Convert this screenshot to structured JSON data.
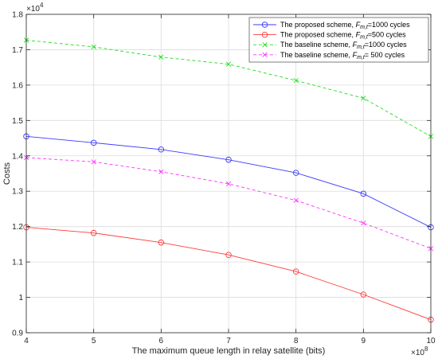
{
  "chart_data": {
    "type": "line",
    "title": "",
    "xlabel": "The maximum queue length in relay satellite (bits)",
    "ylabel": "Costs",
    "x_multiplier": "×10^8",
    "y_multiplier": "×10^4",
    "xlim": [
      4,
      10
    ],
    "ylim": [
      0.9,
      1.8
    ],
    "x_ticks": [
      4,
      5,
      6,
      7,
      8,
      9,
      10
    ],
    "y_ticks": [
      0.9,
      1.0,
      1.1,
      1.2,
      1.3,
      1.4,
      1.5,
      1.6,
      1.7,
      1.8
    ],
    "x_tick_labels": [
      "4",
      "5",
      "6",
      "7",
      "8",
      "9",
      "10"
    ],
    "y_tick_labels": [
      "0.9",
      "1",
      "1.1",
      "1.2",
      "1.3",
      "1.4",
      "1.5",
      "1.6",
      "1.7",
      "1.8"
    ],
    "grid": true,
    "legend_position": "top-right",
    "x": [
      4,
      5,
      6,
      7,
      8,
      9,
      10
    ],
    "series": [
      {
        "name_prefix": "The proposed scheme,",
        "name_suffix": "=1000 cycles",
        "color": "#3b3bff",
        "dash": "solid",
        "marker": "circle",
        "values": [
          1.455,
          1.437,
          1.418,
          1.389,
          1.352,
          1.293,
          1.198
        ]
      },
      {
        "name_prefix": "The proposed scheme,",
        "name_suffix": "=500 cycles",
        "color": "#ff3b3b",
        "dash": "solid",
        "marker": "circle",
        "values": [
          1.198,
          1.182,
          1.155,
          1.12,
          1.073,
          1.008,
          0.937
        ]
      },
      {
        "name_prefix": "The baseline scheme,",
        "name_suffix": "=1000 cycles",
        "color": "#22dd22",
        "dash": "dashed",
        "marker": "x",
        "values": [
          1.727,
          1.708,
          1.679,
          1.659,
          1.613,
          1.563,
          1.455
        ]
      },
      {
        "name_prefix": "The baseline scheme,",
        "name_suffix": "= 500 cycles",
        "color": "#ff33ff",
        "dash": "dashed",
        "marker": "x",
        "values": [
          1.395,
          1.383,
          1.355,
          1.321,
          1.274,
          1.21,
          1.138
        ]
      }
    ]
  }
}
